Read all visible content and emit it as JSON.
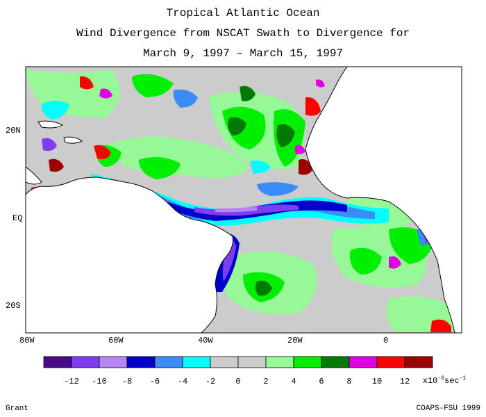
{
  "titles": {
    "line1": "Tropical Atlantic Ocean",
    "line2": "Wind Divergence from NSCAT Swath to Divergence for",
    "line3": "March 9, 1997 – March 15, 1997"
  },
  "axes": {
    "lat_labels": [
      "20N",
      "EQ",
      "20S"
    ],
    "lon_labels": [
      "80W",
      "60W",
      "40W",
      "20W",
      "0"
    ]
  },
  "colorbar": {
    "colors": [
      "#4b0b86",
      "#7f3cf0",
      "#b585f5",
      "#0000cd",
      "#3a8cf8",
      "#00ffff",
      "#cccccc",
      "#cccccc",
      "#97f897",
      "#00ee00",
      "#007a00",
      "#e000e0",
      "#ff0000",
      "#9c0000"
    ],
    "tick_labels": [
      "-12",
      "-10",
      "-8",
      "-6",
      "-4",
      "-2",
      "0",
      "2",
      "4",
      "6",
      "8",
      "10",
      "12"
    ],
    "unit_prefix": "x10",
    "unit_exp": "-6",
    "unit_suffix": "sec",
    "unit_suffix_exp": "-1"
  },
  "footer": {
    "left": "Grant",
    "right": "COAPS-FSU 1999"
  },
  "map_colors": {
    "ocean": "#cccccc",
    "land": "#ffffff",
    "coast": "#000000"
  }
}
